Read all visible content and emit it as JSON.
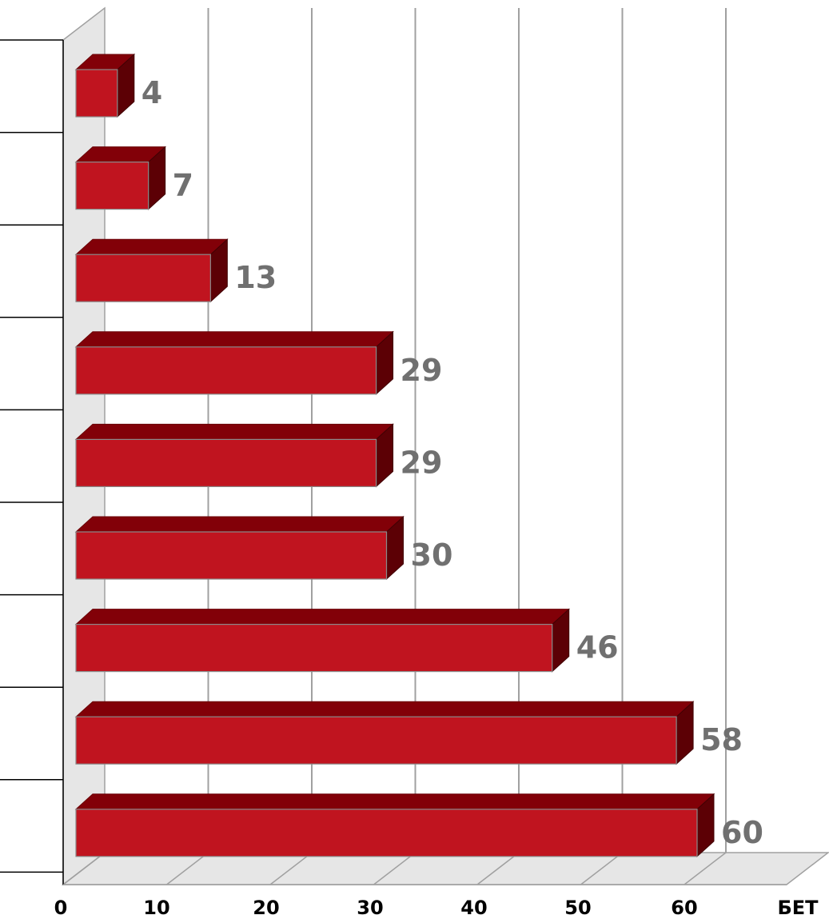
{
  "chart_data": {
    "type": "bar",
    "orientation": "horizontal",
    "style": "3d",
    "categories": [
      "",
      "",
      "",
      "",
      "",
      "",
      "",
      "",
      ""
    ],
    "values": [
      4,
      7,
      13,
      29,
      29,
      30,
      46,
      58,
      60
    ],
    "x_ticks": [
      "0",
      "10",
      "20",
      "30",
      "40",
      "50",
      "60",
      "БЕТ"
    ],
    "xlim": [
      0,
      60
    ],
    "grid": true,
    "data_labels": [
      "4",
      "7",
      "13",
      "29",
      "29",
      "30",
      "46",
      "58",
      "60"
    ],
    "colors": {
      "bar_front": "#c0141f",
      "bar_top": "#820008",
      "bar_side": "#5c0005",
      "grid": "#a0a0a0",
      "wall": "#e6e6e6",
      "value_label": "#707070"
    }
  }
}
